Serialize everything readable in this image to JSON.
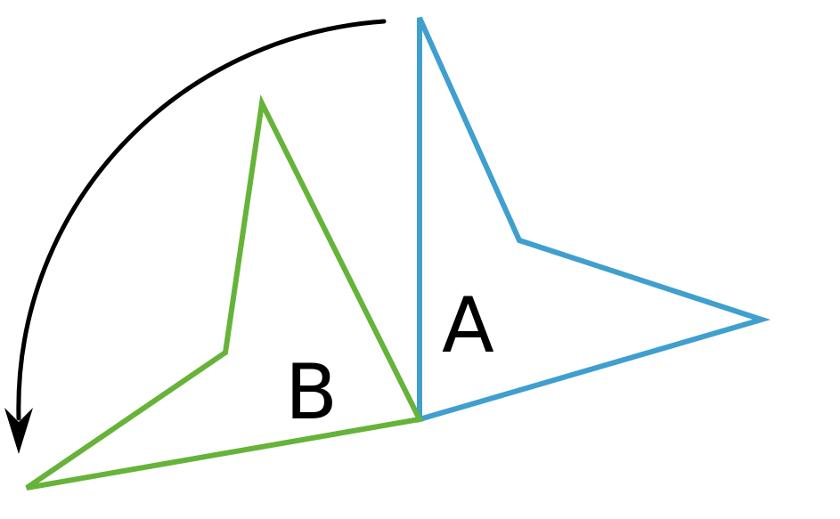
{
  "diagram": {
    "shape_a": {
      "label": "A",
      "stroke_color": "#3f9fcf"
    },
    "shape_b": {
      "label": "B",
      "stroke_color": "#66b339"
    },
    "rotation_arrow": {
      "stroke_color": "#000000",
      "direction": "counterclockwise"
    }
  }
}
